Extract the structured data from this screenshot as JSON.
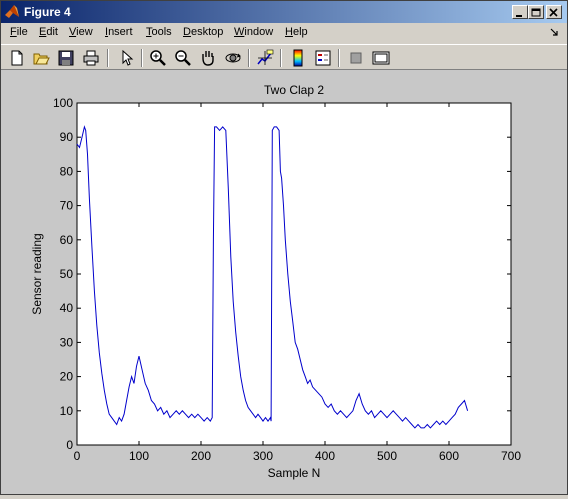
{
  "window": {
    "title": "Figure 4"
  },
  "menu": {
    "items": [
      {
        "label": "File",
        "underline": "F",
        "rest": "ile"
      },
      {
        "label": "Edit",
        "underline": "E",
        "rest": "dit"
      },
      {
        "label": "View",
        "underline": "V",
        "rest": "iew"
      },
      {
        "label": "Insert",
        "underline": "I",
        "rest": "nsert"
      },
      {
        "label": "Tools",
        "underline": "T",
        "rest": "ools"
      },
      {
        "label": "Desktop",
        "underline": "D",
        "rest": "esktop"
      },
      {
        "label": "Window",
        "underline": "W",
        "rest": "indow"
      },
      {
        "label": "Help",
        "underline": "H",
        "rest": "elp"
      }
    ]
  },
  "toolbar": {
    "icons": [
      "new-figure-icon",
      "open-file-icon",
      "save-icon",
      "print-icon",
      "edit-plot-icon",
      "zoom-in-icon",
      "zoom-out-icon",
      "pan-icon",
      "rotate-3d-icon",
      "data-cursor-icon",
      "colorbar-icon",
      "legend-icon",
      "hide-plot-tools-icon",
      "show-plot-tools-icon"
    ]
  },
  "colors": {
    "line": "#0000cc",
    "axes_bg": "#ffffff",
    "figure_bg": "#c8c8c8"
  },
  "chart_data": {
    "type": "line",
    "title": "Two Clap 2",
    "xlabel": "Sample N",
    "ylabel": "Sensor reading",
    "xlim": [
      0,
      700
    ],
    "ylim": [
      0,
      100
    ],
    "xticks": [
      "0",
      "100",
      "200",
      "300",
      "400",
      "500",
      "600",
      "700"
    ],
    "yticks": [
      "0",
      "10",
      "20",
      "30",
      "40",
      "50",
      "60",
      "70",
      "80",
      "90",
      "100"
    ],
    "grid": false,
    "series": [
      {
        "x": [
          0,
          4,
          8,
          12,
          14,
          17,
          20,
          24,
          28,
          32,
          36,
          40,
          44,
          48,
          52,
          56,
          60,
          64,
          68,
          72,
          76,
          80,
          84,
          88,
          92,
          96,
          100,
          105,
          110,
          115,
          120,
          125,
          130,
          135,
          140,
          145,
          150,
          155,
          160,
          165,
          170,
          175,
          180,
          185,
          190,
          195,
          200,
          205,
          210,
          215,
          218,
          220,
          222,
          225,
          230,
          235,
          240,
          244,
          248,
          252,
          256,
          260,
          264,
          268,
          272,
          276,
          280,
          284,
          288,
          292,
          296,
          300,
          304,
          308,
          312,
          313,
          315,
          318,
          322,
          326,
          328,
          330,
          333,
          336,
          340,
          344,
          348,
          352,
          356,
          360,
          364,
          368,
          372,
          376,
          380,
          385,
          390,
          395,
          400,
          405,
          410,
          415,
          420,
          425,
          430,
          435,
          440,
          445,
          450,
          455,
          460,
          465,
          470,
          475,
          480,
          485,
          490,
          495,
          500,
          505,
          510,
          515,
          520,
          525,
          530,
          535,
          540,
          545,
          550,
          555,
          560,
          565,
          570,
          575,
          580,
          585,
          590,
          595,
          600,
          605,
          610,
          615,
          620,
          625,
          630
        ],
        "values": [
          88,
          87,
          90,
          93,
          92,
          85,
          72,
          58,
          45,
          35,
          27,
          21,
          16,
          12,
          9,
          8,
          7,
          6,
          8,
          7,
          9,
          13,
          17,
          20,
          18,
          23,
          26,
          22,
          18,
          16,
          13,
          12,
          10,
          11,
          9,
          10,
          8,
          9,
          10,
          9,
          10,
          9,
          8,
          9,
          8,
          9,
          8,
          7,
          8,
          7,
          8,
          60,
          93,
          93,
          92,
          93,
          92,
          75,
          55,
          42,
          33,
          26,
          20,
          16,
          13,
          11,
          10,
          9,
          8,
          9,
          8,
          7,
          8,
          7,
          8,
          7,
          92,
          93,
          93,
          92,
          80,
          78,
          70,
          60,
          50,
          42,
          36,
          30,
          28,
          25,
          22,
          20,
          18,
          19,
          17,
          16,
          15,
          14,
          12,
          11,
          12,
          10,
          9,
          10,
          9,
          8,
          9,
          10,
          13,
          15,
          12,
          10,
          9,
          10,
          8,
          9,
          10,
          9,
          8,
          9,
          10,
          9,
          8,
          7,
          8,
          7,
          6,
          5,
          6,
          5,
          5,
          6,
          5,
          6,
          7,
          6,
          7,
          6,
          7,
          8,
          9,
          11,
          12,
          13,
          10
        ]
      }
    ]
  }
}
